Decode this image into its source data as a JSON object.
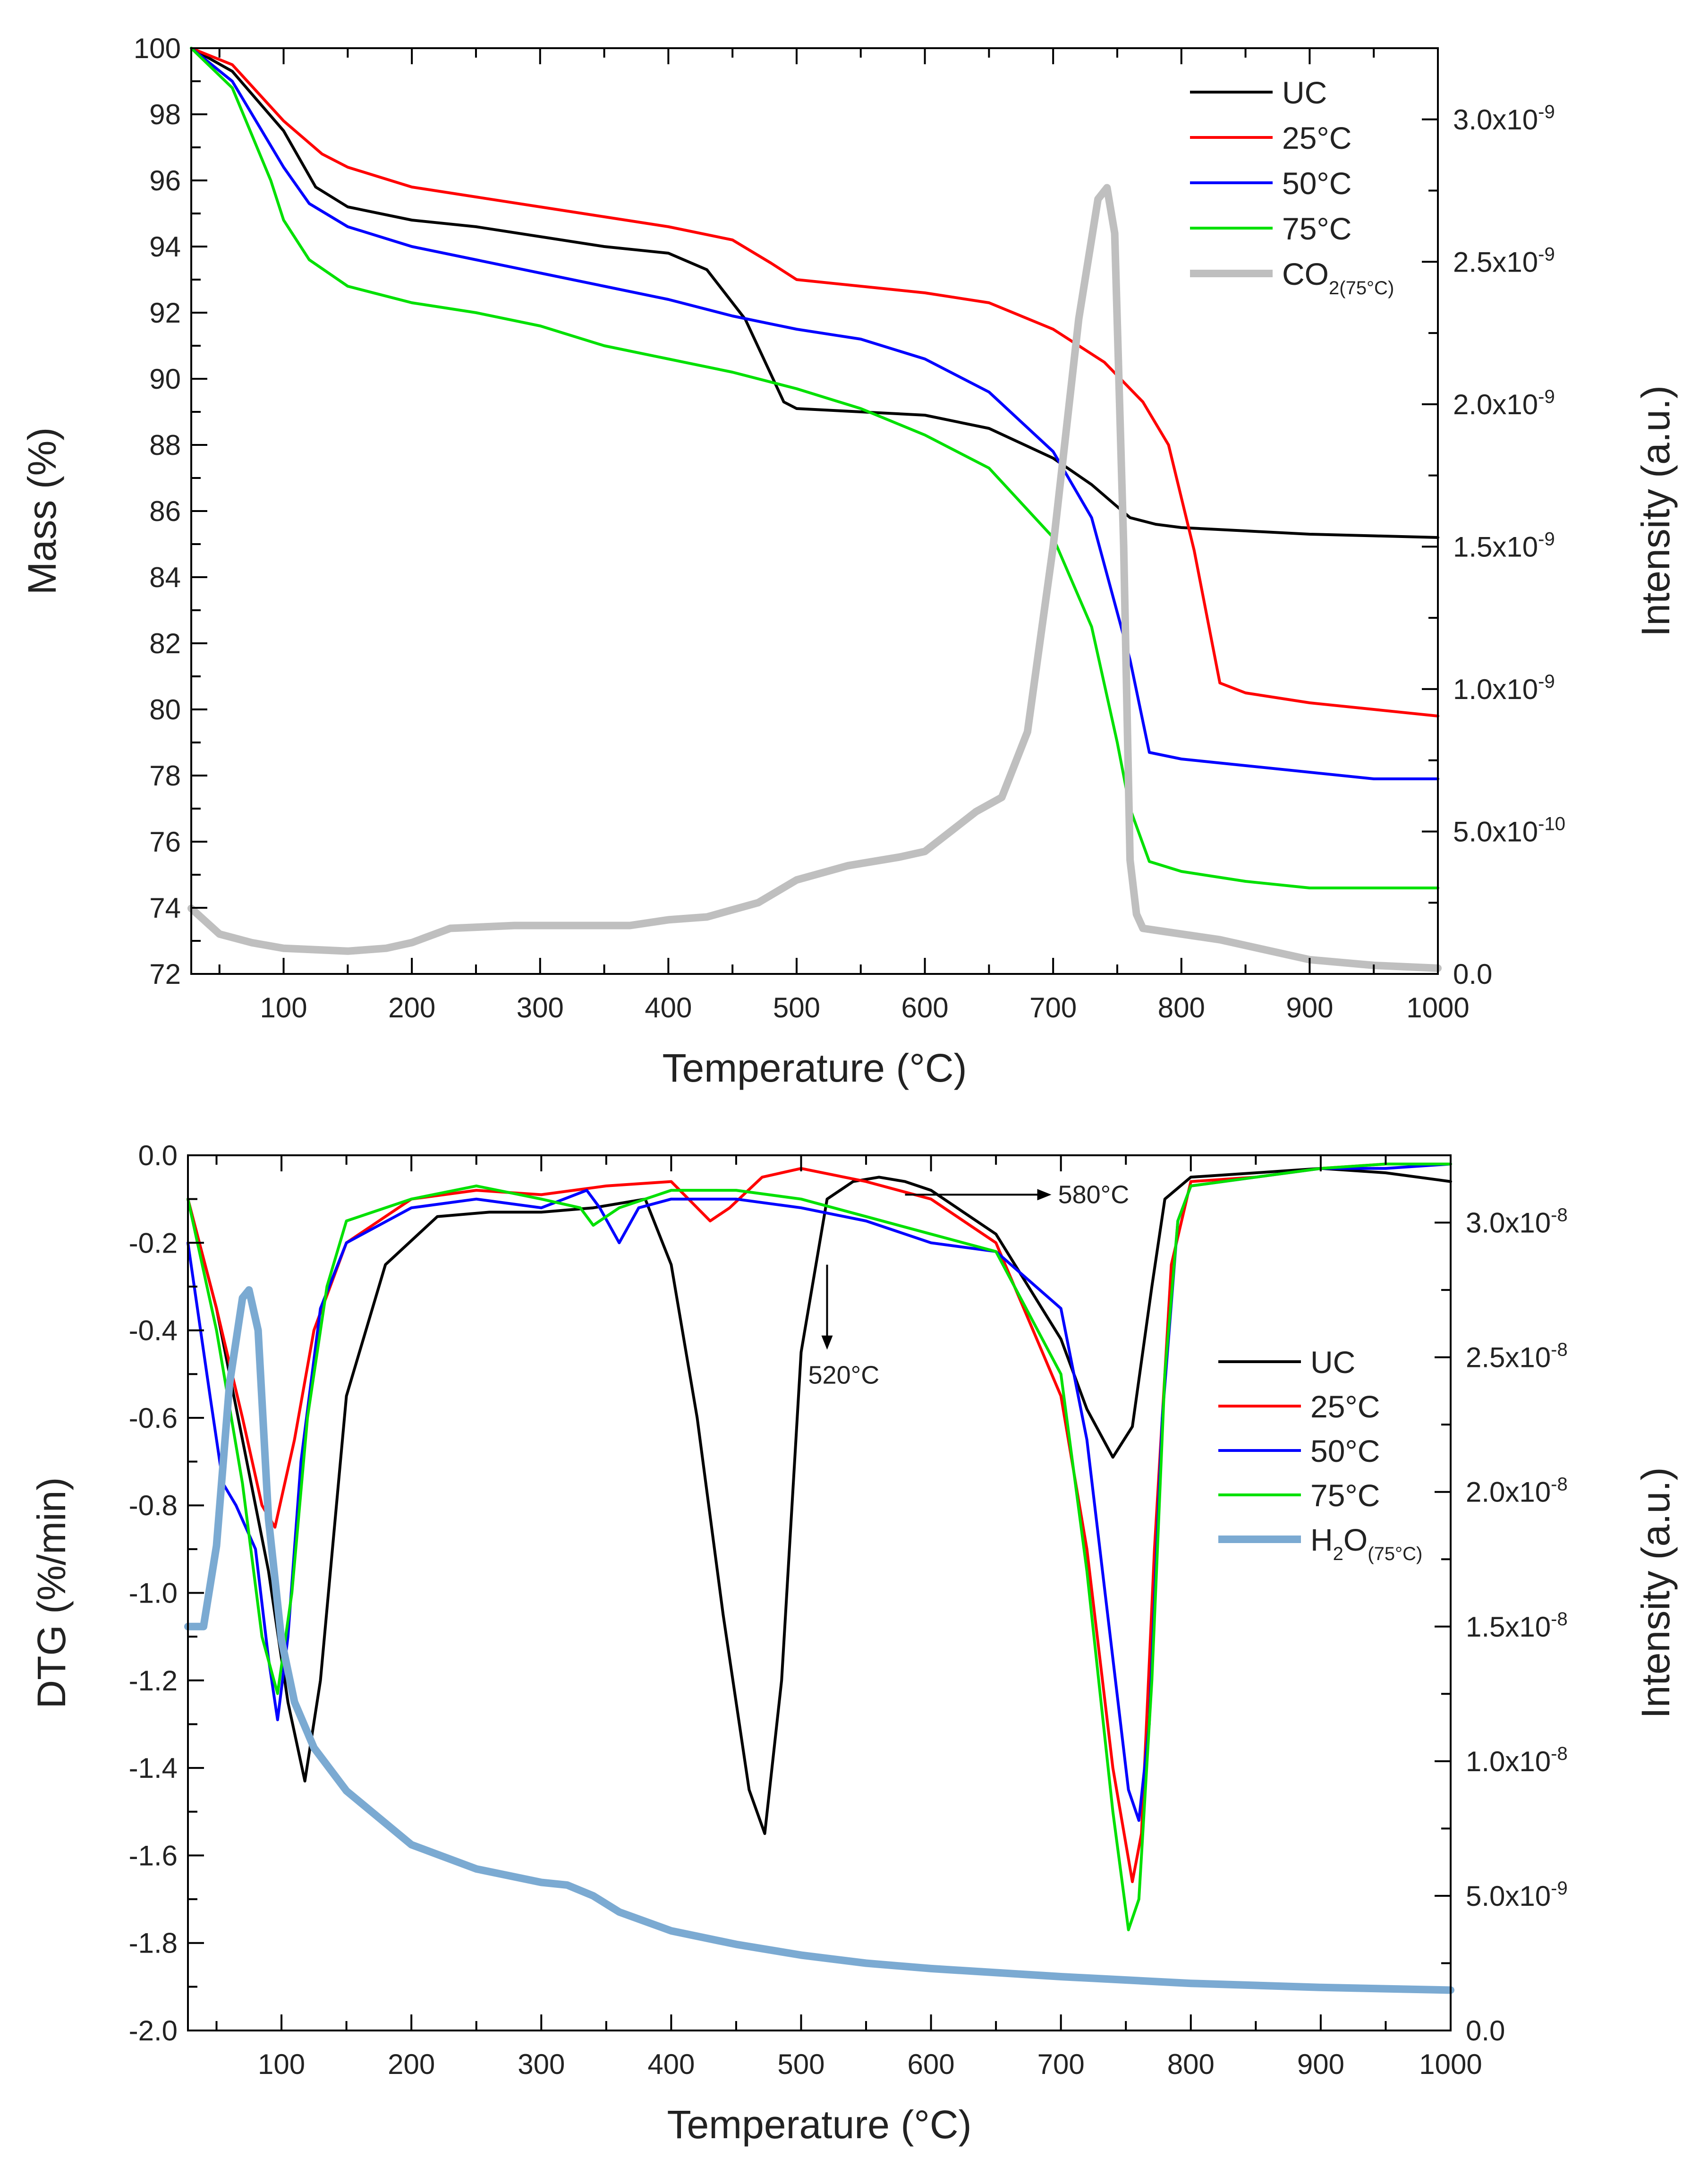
{
  "chart_data": [
    {
      "type": "line",
      "panel": "top",
      "xlabel": "Temperature (°C)",
      "ylabel": "Mass (%)",
      "y2label": "Intensity (a.u.)",
      "xlim": [
        28,
        1000
      ],
      "ylim": [
        72,
        100
      ],
      "y2lim": [
        0,
        3.25e-09
      ],
      "xticks": [
        100,
        200,
        300,
        400,
        500,
        600,
        700,
        800,
        900,
        1000
      ],
      "yticks": [
        72,
        74,
        76,
        78,
        80,
        82,
        84,
        86,
        88,
        90,
        92,
        94,
        96,
        98,
        100
      ],
      "y2ticks": [
        {
          "value": 0,
          "label": "0.0"
        },
        {
          "value": 5e-10,
          "label": "5.0x10",
          "exp": "-10"
        },
        {
          "value": 1e-09,
          "label": "1.0x10",
          "exp": "-9"
        },
        {
          "value": 1.5e-09,
          "label": "1.5x10",
          "exp": "-9"
        },
        {
          "value": 2e-09,
          "label": "2.0x10",
          "exp": "-9"
        },
        {
          "value": 2.5e-09,
          "label": "2.5x10",
          "exp": "-9"
        },
        {
          "value": 3e-09,
          "label": "3.0x10",
          "exp": "-9"
        }
      ],
      "legend_position": "top-right",
      "series": [
        {
          "name": "UC",
          "color": "#000000",
          "width": 6,
          "axis": "left",
          "x": [
            28,
            60,
            100,
            125,
            150,
            200,
            250,
            300,
            350,
            400,
            430,
            460,
            490,
            500,
            550,
            600,
            650,
            700,
            730,
            760,
            780,
            800,
            850,
            900,
            950,
            1000
          ],
          "y": [
            100,
            99.3,
            97.5,
            95.8,
            95.2,
            94.8,
            94.6,
            94.3,
            94.0,
            93.8,
            93.3,
            91.8,
            89.3,
            89.1,
            89.0,
            88.9,
            88.5,
            87.6,
            86.8,
            85.8,
            85.6,
            85.5,
            85.4,
            85.3,
            85.25,
            85.2
          ]
        },
        {
          "name": "25°C",
          "color": "#ff0000",
          "width": 6,
          "axis": "left",
          "x": [
            28,
            60,
            100,
            130,
            150,
            200,
            250,
            300,
            350,
            400,
            450,
            480,
            500,
            550,
            600,
            650,
            700,
            740,
            770,
            790,
            810,
            830,
            850,
            900,
            950,
            1000
          ],
          "y": [
            100,
            99.5,
            97.8,
            96.8,
            96.4,
            95.8,
            95.5,
            95.2,
            94.9,
            94.6,
            94.2,
            93.5,
            93.0,
            92.8,
            92.6,
            92.3,
            91.5,
            90.5,
            89.3,
            88.0,
            84.8,
            80.8,
            80.5,
            80.2,
            80.0,
            79.8
          ]
        },
        {
          "name": "50°C",
          "color": "#0000ff",
          "width": 6,
          "axis": "left",
          "x": [
            28,
            60,
            100,
            120,
            150,
            200,
            250,
            300,
            350,
            400,
            450,
            500,
            550,
            600,
            650,
            700,
            730,
            760,
            775,
            800,
            850,
            900,
            950,
            1000
          ],
          "y": [
            100,
            99.0,
            96.4,
            95.3,
            94.6,
            94.0,
            93.6,
            93.2,
            92.8,
            92.4,
            91.9,
            91.5,
            91.2,
            90.6,
            89.6,
            87.8,
            85.8,
            81.5,
            78.7,
            78.5,
            78.3,
            78.1,
            77.9,
            77.9
          ]
        },
        {
          "name": "75°C",
          "color": "#00e000",
          "width": 6,
          "axis": "left",
          "x": [
            28,
            60,
            90,
            100,
            120,
            150,
            200,
            250,
            300,
            350,
            400,
            450,
            500,
            550,
            600,
            650,
            700,
            730,
            750,
            760,
            775,
            800,
            850,
            900,
            950,
            1000
          ],
          "y": [
            100,
            98.8,
            96.0,
            94.8,
            93.6,
            92.8,
            92.3,
            92.0,
            91.6,
            91.0,
            90.6,
            90.2,
            89.7,
            89.1,
            88.3,
            87.3,
            85.2,
            82.5,
            79.0,
            77.0,
            75.4,
            75.1,
            74.8,
            74.6,
            74.6,
            74.6
          ]
        },
        {
          "name": "CO",
          "name_sub": "2(75°C)",
          "color": "#bfbfbf",
          "width": 16,
          "axis": "right",
          "x": [
            28,
            50,
            75,
            100,
            150,
            180,
            200,
            230,
            280,
            330,
            370,
            400,
            430,
            470,
            500,
            540,
            580,
            600,
            620,
            640,
            660,
            680,
            700,
            720,
            735,
            742,
            748,
            755,
            760,
            765,
            770,
            800,
            830,
            860,
            900,
            950,
            1000
          ],
          "y": [
            2.3e-10,
            1.4e-10,
            1.1e-10,
            9e-11,
            8e-11,
            9e-11,
            1.1e-10,
            1.6e-10,
            1.7e-10,
            1.7e-10,
            1.7e-10,
            1.9e-10,
            2e-10,
            2.5e-10,
            3.3e-10,
            3.8e-10,
            4.1e-10,
            4.3e-10,
            5e-10,
            5.7e-10,
            6.2e-10,
            8.5e-10,
            1.5e-09,
            2.3e-09,
            2.72e-09,
            2.76e-09,
            2.6e-09,
            1.5e-09,
            4e-10,
            2.1e-10,
            1.6e-10,
            1.4e-10,
            1.2e-10,
            9e-11,
            5e-11,
            3e-11,
            2e-11
          ]
        }
      ]
    },
    {
      "type": "line",
      "panel": "bottom",
      "xlabel": "Temperature (°C)",
      "ylabel": "DTG (%/min)",
      "y2label": "Intensity (a.u.)",
      "xlim": [
        28,
        1000
      ],
      "ylim": [
        -2.0,
        0.0
      ],
      "y2lim": [
        0,
        3.25e-08
      ],
      "xticks": [
        100,
        200,
        300,
        400,
        500,
        600,
        700,
        800,
        900,
        1000
      ],
      "yticks": [
        {
          "value": 0.0,
          "label": "0.0"
        },
        {
          "value": -0.2,
          "label": "-0.2"
        },
        {
          "value": -0.4,
          "label": "-0.4"
        },
        {
          "value": -0.6,
          "label": "-0.6"
        },
        {
          "value": -0.8,
          "label": "-0.8"
        },
        {
          "value": -1.0,
          "label": "-1.0"
        },
        {
          "value": -1.2,
          "label": "-1.2"
        },
        {
          "value": -1.4,
          "label": "-1.4"
        },
        {
          "value": -1.6,
          "label": "-1.6"
        },
        {
          "value": -1.8,
          "label": "-1.8"
        },
        {
          "value": -2.0,
          "label": "-2.0"
        }
      ],
      "y2ticks": [
        {
          "value": 0,
          "label": "0.0"
        },
        {
          "value": 5e-09,
          "label": "5.0x10",
          "exp": "-9"
        },
        {
          "value": 1e-08,
          "label": "1.0x10",
          "exp": "-8"
        },
        {
          "value": 1.5e-08,
          "label": "1.5x10",
          "exp": "-8"
        },
        {
          "value": 2e-08,
          "label": "2.0x10",
          "exp": "-8"
        },
        {
          "value": 2.5e-08,
          "label": "2.5x10",
          "exp": "-8"
        },
        {
          "value": 3e-08,
          "label": "3.0x10",
          "exp": "-8"
        }
      ],
      "legend_position": "right",
      "annotations": [
        {
          "text": "580°C",
          "x": 580,
          "y": -0.09,
          "arrow": "right"
        },
        {
          "text": "520°C",
          "x": 520,
          "y": -0.25,
          "arrow": "down"
        }
      ],
      "series": [
        {
          "name": "UC",
          "color": "#000000",
          "width": 6,
          "axis": "left",
          "x": [
            28,
            50,
            70,
            90,
            105,
            118,
            130,
            150,
            180,
            220,
            260,
            300,
            340,
            380,
            400,
            420,
            440,
            460,
            472,
            485,
            500,
            520,
            540,
            560,
            580,
            600,
            650,
            700,
            720,
            740,
            755,
            770,
            780,
            800,
            850,
            900,
            950,
            1000
          ],
          "y": [
            -0.1,
            -0.35,
            -0.65,
            -0.95,
            -1.25,
            -1.43,
            -1.2,
            -0.55,
            -0.25,
            -0.14,
            -0.13,
            -0.13,
            -0.12,
            -0.1,
            -0.25,
            -0.6,
            -1.05,
            -1.45,
            -1.55,
            -1.2,
            -0.45,
            -0.1,
            -0.06,
            -0.05,
            -0.06,
            -0.08,
            -0.18,
            -0.42,
            -0.58,
            -0.69,
            -0.62,
            -0.3,
            -0.1,
            -0.05,
            -0.04,
            -0.03,
            -0.04,
            -0.06
          ]
        },
        {
          "name": "25°C",
          "color": "#ff0000",
          "width": 6,
          "axis": "left",
          "x": [
            28,
            50,
            70,
            85,
            95,
            110,
            125,
            150,
            200,
            250,
            300,
            350,
            400,
            420,
            430,
            445,
            470,
            500,
            550,
            600,
            650,
            700,
            720,
            740,
            755,
            762,
            772,
            785,
            800,
            850,
            900,
            950,
            1000
          ],
          "y": [
            -0.1,
            -0.35,
            -0.6,
            -0.8,
            -0.85,
            -0.65,
            -0.4,
            -0.2,
            -0.1,
            -0.08,
            -0.09,
            -0.07,
            -0.06,
            -0.12,
            -0.15,
            -0.12,
            -0.05,
            -0.03,
            -0.06,
            -0.1,
            -0.2,
            -0.55,
            -0.9,
            -1.4,
            -1.66,
            -1.55,
            -0.9,
            -0.25,
            -0.06,
            -0.05,
            -0.03,
            -0.02,
            -0.02
          ]
        },
        {
          "name": "50°C",
          "color": "#0000ff",
          "width": 6,
          "axis": "left",
          "x": [
            28,
            45,
            55,
            65,
            80,
            90,
            97,
            105,
            115,
            130,
            150,
            200,
            250,
            300,
            335,
            345,
            360,
            375,
            400,
            450,
            500,
            550,
            600,
            650,
            700,
            720,
            740,
            752,
            760,
            768,
            778,
            790,
            800,
            850,
            900,
            950,
            1000
          ],
          "y": [
            -0.2,
            -0.55,
            -0.75,
            -0.8,
            -0.9,
            -1.15,
            -1.29,
            -1.1,
            -0.7,
            -0.35,
            -0.2,
            -0.12,
            -0.1,
            -0.12,
            -0.08,
            -0.12,
            -0.2,
            -0.12,
            -0.1,
            -0.1,
            -0.12,
            -0.15,
            -0.2,
            -0.22,
            -0.35,
            -0.65,
            -1.15,
            -1.45,
            -1.52,
            -1.3,
            -0.6,
            -0.15,
            -0.07,
            -0.05,
            -0.03,
            -0.03,
            -0.02
          ]
        },
        {
          "name": "75°C",
          "color": "#00e000",
          "width": 6,
          "axis": "left",
          "x": [
            28,
            50,
            70,
            85,
            97,
            108,
            120,
            135,
            150,
            200,
            250,
            300,
            330,
            340,
            360,
            400,
            450,
            500,
            550,
            600,
            650,
            700,
            720,
            740,
            752,
            760,
            770,
            780,
            790,
            800,
            850,
            900,
            950,
            1000
          ],
          "y": [
            -0.1,
            -0.4,
            -0.75,
            -1.1,
            -1.23,
            -1.0,
            -0.6,
            -0.3,
            -0.15,
            -0.1,
            -0.07,
            -0.1,
            -0.12,
            -0.16,
            -0.12,
            -0.08,
            -0.08,
            -0.1,
            -0.14,
            -0.18,
            -0.22,
            -0.5,
            -0.95,
            -1.5,
            -1.77,
            -1.7,
            -1.2,
            -0.5,
            -0.15,
            -0.07,
            -0.05,
            -0.03,
            -0.02,
            -0.02
          ]
        },
        {
          "name": "H",
          "name_sub": "2",
          "name_rest": "O",
          "name_sub2": "(75°C)",
          "color": "#7baad2",
          "width": 16,
          "axis": "right",
          "x": [
            28,
            40,
            50,
            60,
            70,
            75,
            82,
            90,
            100,
            110,
            125,
            150,
            200,
            250,
            300,
            320,
            340,
            360,
            400,
            450,
            500,
            550,
            600,
            700,
            800,
            900,
            1000
          ],
          "y": [
            1.5e-08,
            1.5e-08,
            1.8e-08,
            2.4e-08,
            2.72e-08,
            2.75e-08,
            2.6e-08,
            1.9e-08,
            1.45e-08,
            1.22e-08,
            1.05e-08,
            8.9e-09,
            6.9e-09,
            6e-09,
            5.5e-09,
            5.4e-09,
            5e-09,
            4.4e-09,
            3.7e-09,
            3.2e-09,
            2.8e-09,
            2.5e-09,
            2.3e-09,
            2e-09,
            1.75e-09,
            1.6e-09,
            1.5e-09
          ]
        }
      ]
    }
  ]
}
